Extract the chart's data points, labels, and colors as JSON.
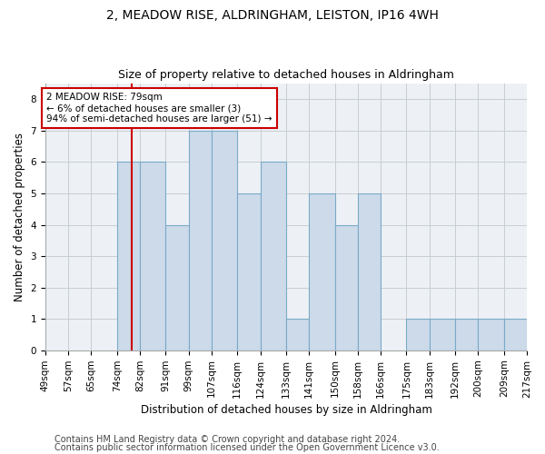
{
  "title1": "2, MEADOW RISE, ALDRINGHAM, LEISTON, IP16 4WH",
  "title2": "Size of property relative to detached houses in Aldringham",
  "xlabel": "Distribution of detached houses by size in Aldringham",
  "ylabel": "Number of detached properties",
  "bin_edges": [
    49,
    57,
    65,
    74,
    82,
    91,
    99,
    107,
    116,
    124,
    133,
    141,
    150,
    158,
    166,
    175,
    183,
    192,
    200,
    209,
    217
  ],
  "bar_heights": [
    0,
    0,
    0,
    6,
    6,
    4,
    7,
    7,
    5,
    6,
    1,
    5,
    4,
    5,
    0,
    1,
    1,
    1,
    1,
    1
  ],
  "bar_color": "#ccdaea",
  "bar_edge_color": "#7aaac8",
  "subject_value": 79,
  "annotation_text": "2 MEADOW RISE: 79sqm\n← 6% of detached houses are smaller (3)\n94% of semi-detached houses are larger (51) →",
  "annotation_box_color": "white",
  "annotation_box_edge_color": "#cc0000",
  "vline_color": "#cc0000",
  "ylim_max": 8.5,
  "yticks": [
    0,
    1,
    2,
    3,
    4,
    5,
    6,
    7,
    8
  ],
  "footer1": "Contains HM Land Registry data © Crown copyright and database right 2024.",
  "footer2": "Contains public sector information licensed under the Open Government Licence v3.0.",
  "grid_color": "#c8cdd2",
  "background_color": "#edf1f5",
  "title_fontsize": 10,
  "subtitle_fontsize": 9,
  "label_fontsize": 8.5,
  "tick_fontsize": 7.5,
  "annotation_fontsize": 7.5,
  "footer_fontsize": 7
}
